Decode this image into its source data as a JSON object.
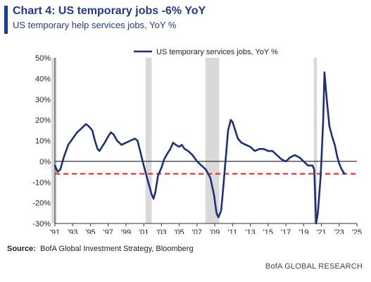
{
  "header": {
    "title": "Chart 4: US temporary jobs -6% YoY",
    "subtitle": "US temporary help services jobs, YoY %",
    "accent_color": "#1f3c88"
  },
  "footer": {
    "source_label": "Source:",
    "source_text": "BofA Global Investment Strategy, Bloomberg",
    "brand": "BofA GLOBAL RESEARCH"
  },
  "chart_data": {
    "type": "line",
    "title": "",
    "xlabel": "",
    "ylabel": "",
    "xlim": [
      1991,
      2025
    ],
    "ylim": [
      -30,
      50
    ],
    "y_ticks": [
      -30,
      -20,
      -10,
      0,
      10,
      20,
      30,
      40,
      50
    ],
    "y_tick_labels": [
      "-30%",
      "-20%",
      "-10%",
      "0%",
      "10%",
      "20%",
      "30%",
      "40%",
      "50%"
    ],
    "x_ticks": [
      1991,
      1993,
      1995,
      1997,
      1999,
      2001,
      2003,
      2005,
      2007,
      2009,
      2011,
      2013,
      2015,
      2017,
      2019,
      2021,
      2023,
      2025
    ],
    "x_tick_labels": [
      "'91",
      "'93",
      "'95",
      "'97",
      "'99",
      "'01",
      "'03",
      "'05",
      "'07",
      "'09",
      "'11",
      "'13",
      "'15",
      "'17",
      "'19",
      "'21",
      "'23",
      "'25"
    ],
    "grid": false,
    "legend_position": "top",
    "recessions": [
      [
        1990.6,
        1991.2
      ],
      [
        2001.2,
        2001.9
      ],
      [
        2007.95,
        2009.5
      ],
      [
        2020.15,
        2020.5
      ]
    ],
    "recession_color": "#d9d9d9",
    "reference_lines": [
      {
        "y": 0,
        "style": "solid",
        "color": "#000000"
      },
      {
        "y": -6,
        "style": "dashed",
        "color": "#d9262a"
      }
    ],
    "series": [
      {
        "name": "US temporary services jobs, YoY %",
        "color": "#1f2f7a",
        "points": [
          [
            1991.0,
            -2
          ],
          [
            1991.3,
            -5
          ],
          [
            1991.6,
            -4
          ],
          [
            1992.0,
            2
          ],
          [
            1992.5,
            8
          ],
          [
            1993.0,
            11
          ],
          [
            1993.5,
            14
          ],
          [
            1994.0,
            16
          ],
          [
            1994.5,
            18
          ],
          [
            1994.8,
            17
          ],
          [
            1995.2,
            15
          ],
          [
            1995.5,
            10
          ],
          [
            1995.8,
            6
          ],
          [
            1996.0,
            5
          ],
          [
            1996.3,
            7
          ],
          [
            1996.6,
            9
          ],
          [
            1997.0,
            12
          ],
          [
            1997.3,
            14
          ],
          [
            1997.6,
            13
          ],
          [
            1998.0,
            10
          ],
          [
            1998.5,
            8
          ],
          [
            1999.0,
            9
          ],
          [
            1999.5,
            10
          ],
          [
            2000.0,
            11
          ],
          [
            2000.3,
            10
          ],
          [
            2000.6,
            5
          ],
          [
            2001.0,
            -2
          ],
          [
            2001.5,
            -10
          ],
          [
            2001.9,
            -16
          ],
          [
            2002.1,
            -18
          ],
          [
            2002.3,
            -15
          ],
          [
            2002.6,
            -7
          ],
          [
            2003.0,
            -3
          ],
          [
            2003.3,
            1
          ],
          [
            2003.7,
            4
          ],
          [
            2004.0,
            6
          ],
          [
            2004.3,
            9
          ],
          [
            2004.6,
            8
          ],
          [
            2005.0,
            7
          ],
          [
            2005.3,
            8
          ],
          [
            2005.6,
            6
          ],
          [
            2006.0,
            5
          ],
          [
            2006.5,
            3
          ],
          [
            2007.0,
            0
          ],
          [
            2007.5,
            -2
          ],
          [
            2008.0,
            -4
          ],
          [
            2008.5,
            -8
          ],
          [
            2008.9,
            -16
          ],
          [
            2009.2,
            -25
          ],
          [
            2009.4,
            -27
          ],
          [
            2009.7,
            -24
          ],
          [
            2009.9,
            -15
          ],
          [
            2010.2,
            0
          ],
          [
            2010.5,
            15
          ],
          [
            2010.8,
            20
          ],
          [
            2011.0,
            19
          ],
          [
            2011.3,
            15
          ],
          [
            2011.6,
            11
          ],
          [
            2012.0,
            9
          ],
          [
            2012.5,
            8
          ],
          [
            2013.0,
            7
          ],
          [
            2013.5,
            5
          ],
          [
            2014.0,
            6
          ],
          [
            2014.5,
            6
          ],
          [
            2015.0,
            5
          ],
          [
            2015.5,
            5
          ],
          [
            2016.0,
            3
          ],
          [
            2016.5,
            1
          ],
          [
            2017.0,
            0
          ],
          [
            2017.5,
            2
          ],
          [
            2018.0,
            3
          ],
          [
            2018.5,
            2
          ],
          [
            2019.0,
            0
          ],
          [
            2019.5,
            -2
          ],
          [
            2020.0,
            -2
          ],
          [
            2020.2,
            -4
          ],
          [
            2020.4,
            -30
          ],
          [
            2020.6,
            -25
          ],
          [
            2020.9,
            -8
          ],
          [
            2021.0,
            0
          ],
          [
            2021.2,
            20
          ],
          [
            2021.35,
            43
          ],
          [
            2021.6,
            30
          ],
          [
            2021.9,
            17
          ],
          [
            2022.2,
            12
          ],
          [
            2022.5,
            8
          ],
          [
            2022.8,
            2
          ],
          [
            2023.0,
            -1
          ],
          [
            2023.3,
            -4
          ],
          [
            2023.6,
            -6
          ]
        ]
      }
    ]
  }
}
